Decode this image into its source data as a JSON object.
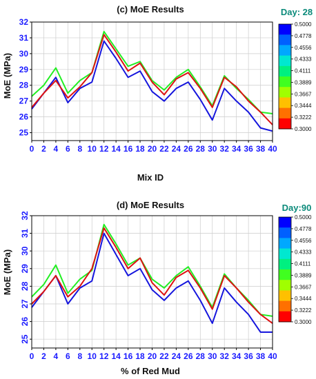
{
  "chart_data": [
    {
      "type": "line",
      "title": "(c) MoE Results",
      "xlabel": "Mix ID",
      "ylabel": "MoE (MPa)",
      "day_label": "Day: 28",
      "x": [
        0,
        2,
        4,
        6,
        8,
        10,
        12,
        14,
        16,
        18,
        20,
        22,
        24,
        26,
        28,
        30,
        32,
        34,
        36,
        38,
        40
      ],
      "xlim": [
        0,
        40
      ],
      "ylim": [
        24.5,
        32
      ],
      "yticks": [
        25,
        26,
        27,
        28,
        29,
        30,
        31,
        32
      ],
      "series": [
        {
          "color": "#1515dd",
          "values": [
            26.5,
            27.5,
            28.5,
            26.9,
            27.8,
            28.2,
            30.8,
            29.7,
            28.5,
            28.9,
            27.6,
            27.0,
            27.8,
            28.2,
            27.1,
            25.8,
            27.8,
            27.0,
            26.3,
            25.3,
            25.1
          ]
        },
        {
          "color": "#22ee22",
          "values": [
            27.3,
            28.0,
            29.1,
            27.5,
            28.3,
            28.8,
            31.4,
            30.3,
            29.2,
            29.5,
            28.3,
            27.7,
            28.5,
            29.0,
            27.9,
            26.7,
            28.6,
            27.8,
            27.1,
            26.3,
            26.2
          ]
        },
        {
          "color": "#dd1111",
          "values": [
            26.6,
            27.5,
            28.3,
            27.2,
            27.9,
            28.8,
            31.2,
            30.1,
            28.9,
            29.4,
            28.2,
            27.4,
            28.4,
            28.8,
            27.8,
            26.6,
            28.5,
            27.9,
            27.0,
            26.3,
            25.5
          ]
        }
      ],
      "colorbar": {
        "min": 0.3,
        "max": 0.5,
        "ticks": [
          "0.5000",
          "0.4778",
          "0.4556",
          "0.4333",
          "0.4111",
          "0.3889",
          "0.3667",
          "0.3444",
          "0.3222",
          "0.3000"
        ],
        "colors": [
          "#0000ff",
          "#0060ff",
          "#00a8ff",
          "#00e8d0",
          "#00f080",
          "#40ff20",
          "#a0ff00",
          "#ffc000",
          "#ff7000",
          "#ff0000"
        ]
      }
    },
    {
      "type": "line",
      "title": "(d) MoE Results",
      "xlabel": "% of Red Mud",
      "ylabel": "MoE (MPa)",
      "day_label": "Day:90",
      "x": [
        0,
        2,
        4,
        6,
        8,
        10,
        12,
        14,
        16,
        18,
        20,
        22,
        24,
        26,
        28,
        30,
        32,
        34,
        36,
        38,
        40
      ],
      "xlim": [
        0,
        40
      ],
      "ylim": [
        24.5,
        32
      ],
      "yticks": [
        25,
        26,
        27,
        28,
        29,
        30,
        31,
        32
      ],
      "series": [
        {
          "color": "#1515dd",
          "values": [
            26.8,
            27.7,
            28.6,
            27.0,
            27.9,
            28.3,
            31.0,
            29.8,
            28.6,
            29.0,
            27.8,
            27.2,
            27.9,
            28.3,
            27.2,
            25.9,
            27.9,
            27.1,
            26.4,
            25.4,
            25.4
          ]
        },
        {
          "color": "#22ee22",
          "values": [
            27.4,
            28.1,
            29.2,
            27.6,
            28.4,
            28.9,
            31.5,
            30.4,
            29.2,
            29.6,
            28.4,
            27.9,
            28.6,
            29.1,
            28.0,
            26.8,
            28.7,
            27.9,
            27.2,
            26.4,
            26.3
          ]
        },
        {
          "color": "#dd1111",
          "values": [
            27.0,
            27.7,
            28.6,
            27.4,
            28.0,
            29.0,
            31.3,
            30.2,
            29.0,
            29.6,
            28.2,
            27.5,
            28.5,
            28.9,
            27.9,
            26.7,
            28.6,
            27.9,
            27.1,
            26.4,
            25.9
          ]
        }
      ],
      "colorbar": {
        "min": 0.3,
        "max": 0.5,
        "ticks": [
          "0.5000",
          "0.4778",
          "0.4556",
          "0.4333",
          "0.4111",
          "0.3889",
          "0.3667",
          "0.3444",
          "0.3222",
          "0.3000"
        ],
        "colors": [
          "#0000ff",
          "#0060ff",
          "#00a8ff",
          "#00e8d0",
          "#00f080",
          "#40ff20",
          "#a0ff00",
          "#ffc000",
          "#ff7000",
          "#ff0000"
        ]
      }
    }
  ]
}
